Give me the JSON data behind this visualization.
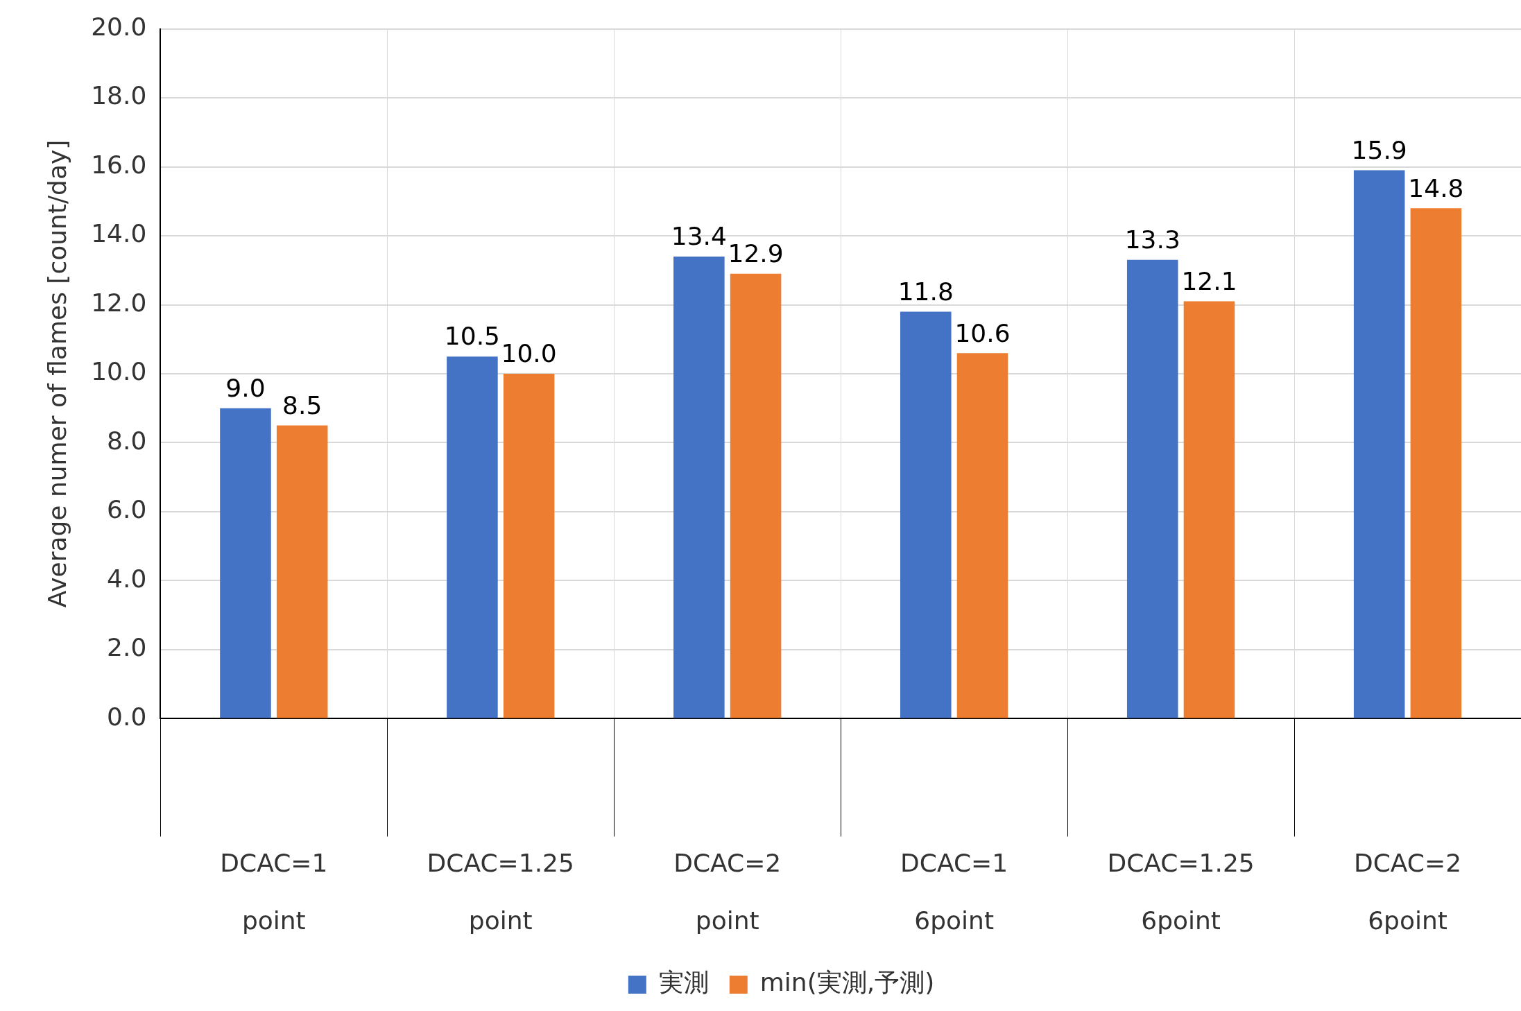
{
  "chart_data": {
    "type": "bar",
    "ylabel": "Average numer of flames [count/day]",
    "categories": [
      "DCAC=1\npoint",
      "DCAC=1.25\npoint",
      "DCAC=2\npoint",
      "DCAC=1\n6point",
      "DCAC=1.25\n6point",
      "DCAC=2\n6point"
    ],
    "series": [
      {
        "name": "実測",
        "color": "#4472c4",
        "values": [
          9.0,
          10.5,
          13.4,
          11.8,
          13.3,
          15.9
        ],
        "value_labels": [
          "9.0",
          "10.5",
          "13.4",
          "11.8",
          "13.3",
          "15.9"
        ]
      },
      {
        "name": "min(実測,予測)",
        "color": "#ed7d31",
        "values": [
          8.5,
          10.0,
          12.9,
          10.6,
          12.1,
          14.8
        ],
        "value_labels": [
          "8.5",
          "10.0",
          "12.9",
          "10.6",
          "12.1",
          "14.8"
        ]
      }
    ],
    "ylim": [
      0,
      20
    ],
    "yticks": [
      {
        "value": 0,
        "label": "0.0"
      },
      {
        "value": 2,
        "label": "2.0"
      },
      {
        "value": 4,
        "label": "4.0"
      },
      {
        "value": 6,
        "label": "6.0"
      },
      {
        "value": 8,
        "label": "8.0"
      },
      {
        "value": 10,
        "label": "10.0"
      },
      {
        "value": 12,
        "label": "12.0"
      },
      {
        "value": 14,
        "label": "14.0"
      },
      {
        "value": 16,
        "label": "16.0"
      },
      {
        "value": 18,
        "label": "18.0"
      },
      {
        "value": 20,
        "label": "20.0"
      }
    ],
    "grid": true,
    "legend": "bottom"
  }
}
